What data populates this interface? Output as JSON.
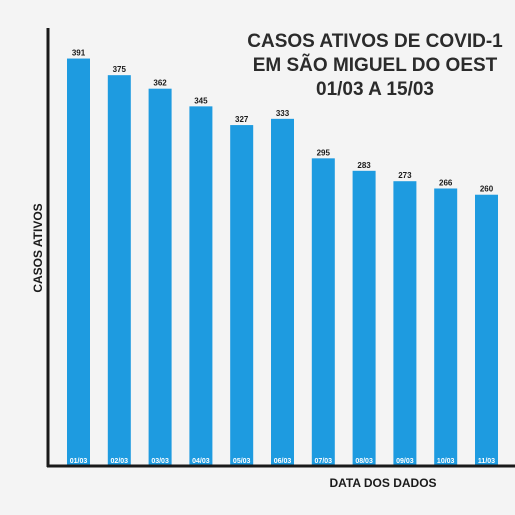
{
  "title_lines": [
    "CASOS ATIVOS DE COVID-1",
    "EM SÃO MIGUEL DO OEST",
    "01/03 A 15/03"
  ],
  "colors": {
    "bar": "#1e9be0",
    "axis": "#1a1a1a",
    "background": "#f4f4f4"
  },
  "chart_data": {
    "type": "bar",
    "ylabel": "CASOS ATIVOS",
    "xlabel": "DATA DOS DADOS",
    "categories": [
      "01/03",
      "02/03",
      "03/03",
      "04/03",
      "05/03",
      "06/03",
      "07/03",
      "08/03",
      "09/03",
      "10/03",
      "11/03"
    ],
    "values": [
      391,
      375,
      362,
      345,
      327,
      333,
      295,
      283,
      273,
      266,
      260
    ],
    "ylim": [
      0,
      430
    ],
    "grid": false,
    "legend": "none"
  }
}
